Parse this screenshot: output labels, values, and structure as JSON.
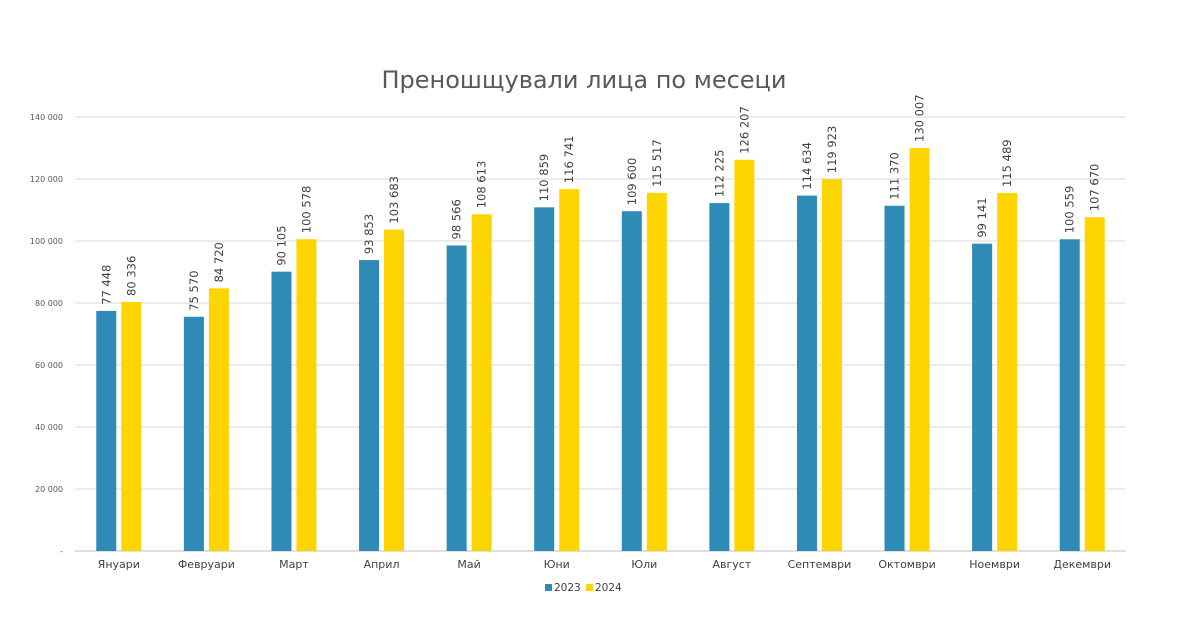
{
  "chart_data": {
    "type": "bar",
    "title": "Преношщували лица по месеци",
    "categories": [
      "Януари",
      "Февруари",
      "Март",
      "Април",
      "Май",
      "Юни",
      "Юли",
      "Август",
      "Септември",
      "Октомври",
      "Ноември",
      "Декември"
    ],
    "series": [
      {
        "name": "2023",
        "color": "#2E8BB6",
        "values": [
          77448,
          75570,
          90105,
          93853,
          98566,
          110859,
          109600,
          112225,
          114634,
          111370,
          99141,
          100559
        ],
        "labels": [
          "77 448",
          "75 570",
          "90 105",
          "93 853",
          "98 566",
          "110 859",
          "109 600",
          "112 225",
          "114 634",
          "111 370",
          "99 141",
          "100 559"
        ]
      },
      {
        "name": "2024",
        "color": "#FFD500",
        "values": [
          80336,
          84720,
          100578,
          103683,
          108613,
          116741,
          115517,
          126207,
          119923,
          130007,
          115489,
          107670
        ],
        "labels": [
          "80 336",
          "84 720",
          "100 578",
          "103 683",
          "108 613",
          "116 741",
          "115 517",
          "126 207",
          "119 923",
          "130 007",
          "115 489",
          "107 670"
        ]
      }
    ],
    "ylim": [
      0,
      140000
    ],
    "yticks": [
      0,
      20000,
      40000,
      60000,
      80000,
      100000,
      120000,
      140000
    ],
    "ytick_labels": [
      "-",
      "20 000",
      "40 000",
      "60 000",
      "80 000",
      "100 000",
      "120 000",
      "140 000"
    ],
    "grid": true,
    "legend": "bottom"
  }
}
